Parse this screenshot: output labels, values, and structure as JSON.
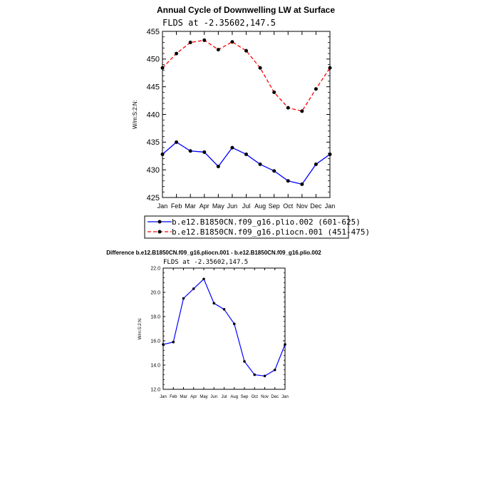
{
  "chart_data": [
    {
      "type": "line",
      "title": "Annual Cycle of Downwelling LW at Surface",
      "subtitle": "FLDS at -2.35602,147.5",
      "ylabel": "W/m:S:2:N:",
      "categories": [
        "Jan",
        "Feb",
        "Mar",
        "Apr",
        "May",
        "Jun",
        "Jul",
        "Aug",
        "Sep",
        "Oct",
        "Nov",
        "Dec",
        "Jan"
      ],
      "ylim": [
        425,
        455
      ],
      "yticks": [
        "425",
        "430",
        "435",
        "440",
        "445",
        "450",
        "455"
      ],
      "series": [
        {
          "name": "b.e12.B1850CN.f09_g16.plio.002 (601-625)",
          "color": "#0000ff",
          "dash": "solid",
          "values": [
            432.8,
            435.0,
            433.4,
            433.2,
            430.6,
            434.0,
            432.8,
            431.0,
            429.8,
            428.0,
            427.4,
            431.0,
            432.8
          ]
        },
        {
          "name": "b.e12.B1850CN.f09_g16.pliocn.001 (451-475)",
          "color": "#ff0000",
          "dash": "dashed",
          "values": [
            448.4,
            451.0,
            453.0,
            453.4,
            451.7,
            453.1,
            451.5,
            448.4,
            444.0,
            441.2,
            440.6,
            444.6,
            448.4
          ]
        }
      ],
      "legend_position": "bottom"
    },
    {
      "type": "line",
      "title": "Difference b.e12.B1850CN.f09_g16.pliocn.001 - b.e12.B1850CN.f09_g16.plio.002",
      "subtitle": "FLDS at -2.35602,147.5",
      "ylabel": "W/m:S:2:N:",
      "categories": [
        "Jan",
        "Feb",
        "Mar",
        "Apr",
        "May",
        "Jun",
        "Jul",
        "Aug",
        "Sep",
        "Oct",
        "Nov",
        "Dec",
        "Jan"
      ],
      "ylim": [
        12.0,
        22.0
      ],
      "yticks": [
        "12.0",
        "14.0",
        "16.0",
        "18.0",
        "20.0",
        "22.0"
      ],
      "series": [
        {
          "color": "#0000ff",
          "dash": "solid",
          "values": [
            15.7,
            15.9,
            19.5,
            20.3,
            21.1,
            19.1,
            18.6,
            17.4,
            14.3,
            13.2,
            13.1,
            13.6,
            15.7
          ]
        }
      ]
    }
  ]
}
